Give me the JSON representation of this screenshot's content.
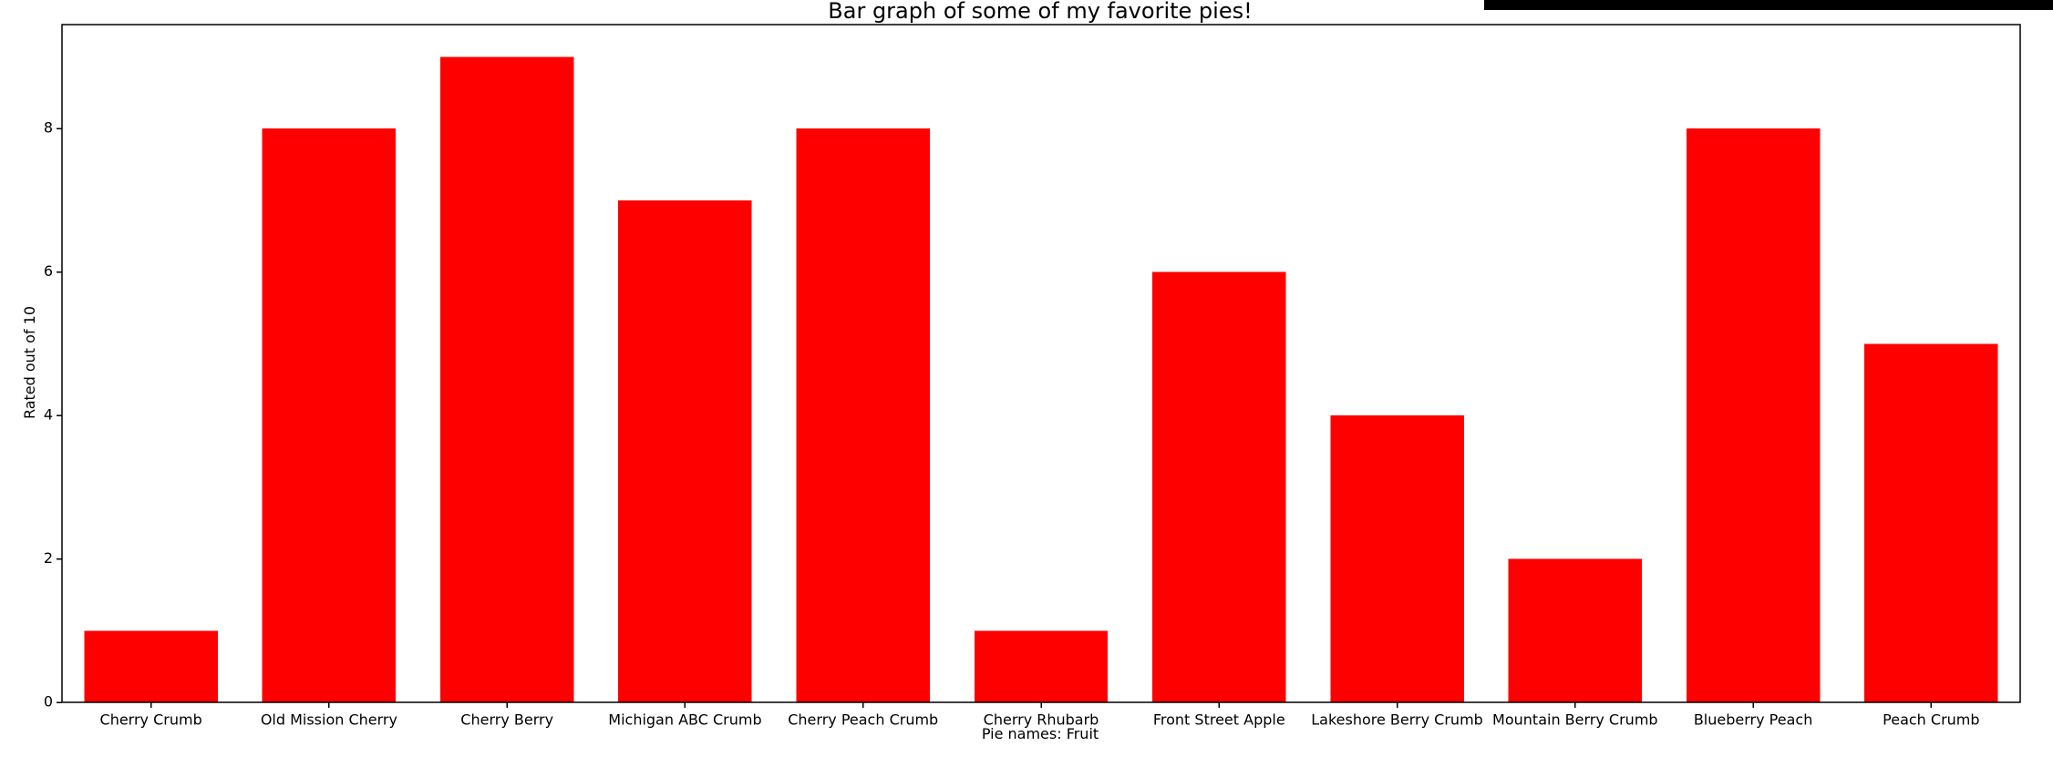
{
  "chart_data": {
    "type": "bar",
    "title": "Bar graph of some of my favorite pies!",
    "xlabel": "Pie names: Fruit",
    "ylabel": "Rated out of 10",
    "categories": [
      "Cherry Crumb",
      "Old Mission Cherry",
      "Cherry Berry",
      "Michigan ABC Crumb",
      "Cherry Peach Crumb",
      "Cherry Rhubarb",
      "Front Street Apple",
      "Lakeshore Berry Crumb",
      "Mountain Berry Crumb",
      "Blueberry Peach",
      "Peach Crumb"
    ],
    "values": [
      1,
      8,
      9,
      7,
      8,
      1,
      6,
      4,
      2,
      8,
      5
    ],
    "ylim": [
      0,
      9.45
    ],
    "yticks": [
      0,
      2,
      4,
      6,
      8
    ],
    "bar_color": "#ff0000",
    "grid": false,
    "legend": "none"
  }
}
